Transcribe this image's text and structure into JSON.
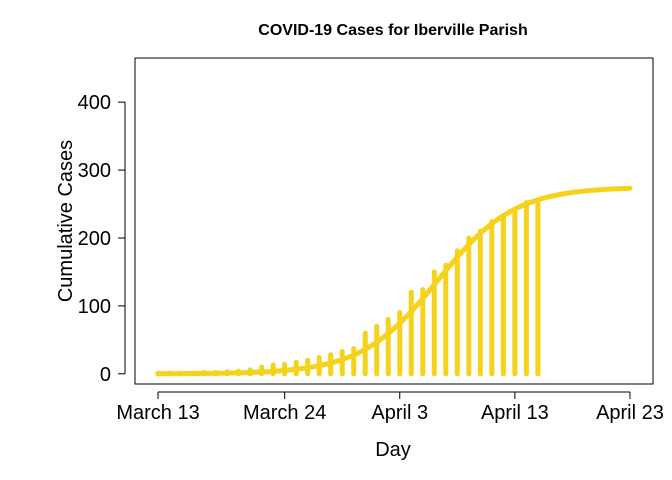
{
  "chart_data": {
    "type": "line",
    "title": "COVID-19 Cases for Iberville Parish",
    "xlabel": "Day",
    "ylabel": "Cumulative Cases",
    "x_ticks": [
      {
        "day": 0,
        "label": "March 13"
      },
      {
        "day": 11,
        "label": "March 24"
      },
      {
        "day": 21,
        "label": "April 3"
      },
      {
        "day": 31,
        "label": "April 13"
      },
      {
        "day": 41,
        "label": "April 23"
      }
    ],
    "y_ticks": [
      0,
      100,
      200,
      300,
      400
    ],
    "xlim": [
      -2,
      43
    ],
    "ylim": [
      -15,
      465
    ],
    "line_color": "#F5D21B",
    "observed": {
      "days": [
        0,
        1,
        2,
        3,
        4,
        5,
        6,
        7,
        8,
        9,
        10,
        11,
        12,
        13,
        14,
        15,
        16,
        17,
        18,
        19,
        20,
        21,
        22,
        23,
        24,
        25,
        26,
        27,
        28,
        29,
        30,
        31,
        32,
        33
      ],
      "cases": [
        1,
        1,
        1,
        1,
        2,
        2,
        3,
        4,
        6,
        10,
        13,
        14,
        17,
        20,
        24,
        28,
        33,
        37,
        60,
        70,
        80,
        90,
        120,
        124,
        150,
        160,
        181,
        200,
        210,
        224,
        230,
        240,
        252,
        256
      ]
    },
    "fit": {
      "model": "logistic",
      "asymptote": 275,
      "midpoint_day": 24.3,
      "rate": 0.3
    },
    "grid": false
  }
}
